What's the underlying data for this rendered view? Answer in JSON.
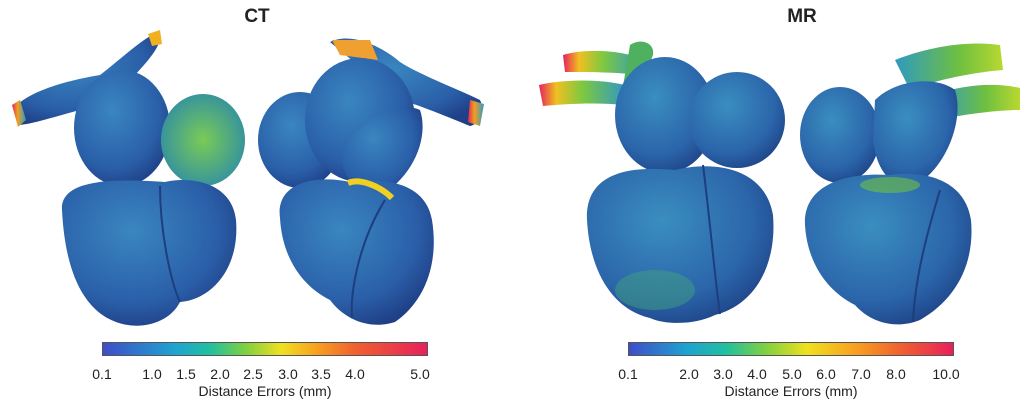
{
  "panels": {
    "ct": {
      "title": "CT",
      "colorbar": {
        "ticks": [
          "0.1",
          "1.0",
          "1.5",
          "2.0",
          "2.5",
          "3.0",
          "3.5",
          "4.0",
          "5.0"
        ],
        "label": "Distance Errors (mm)"
      }
    },
    "mr": {
      "title": "MR",
      "colorbar": {
        "ticks": [
          "0.1",
          "2.0",
          "3.0",
          "4.0",
          "5.0",
          "6.0",
          "7.0",
          "8.0",
          "10.0"
        ],
        "label": "Distance Errors (mm)"
      }
    }
  },
  "colors": {
    "low": "#3f4ec8",
    "mid_low": "#1fa3d0",
    "mid": "#7fd040",
    "mid_high": "#f0e020",
    "high": "#e8205c",
    "heart_base": "#2f6fb0"
  }
}
